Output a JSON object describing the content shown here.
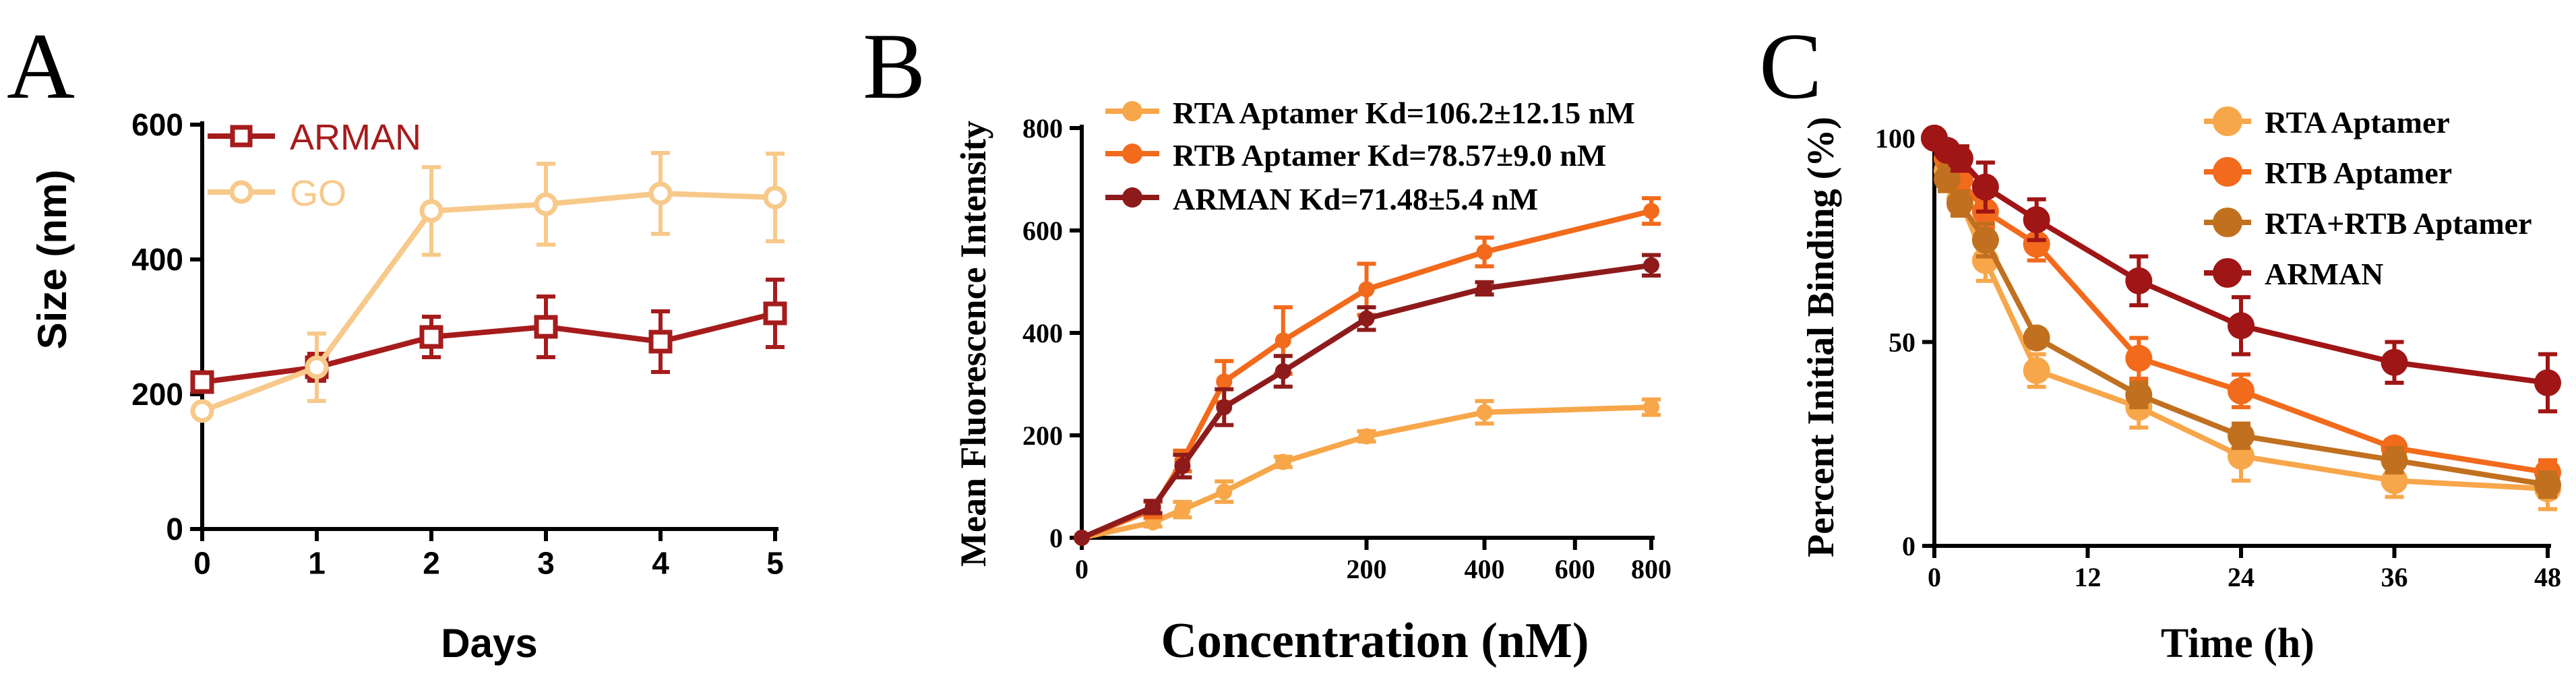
{
  "chart_data": [
    {
      "type": "line",
      "panel": "A",
      "xlabel": "Days",
      "ylabel": "Size (nm)",
      "xlim": [
        0,
        5
      ],
      "ylim": [
        0,
        600
      ],
      "xticks": [
        0,
        1,
        2,
        3,
        4,
        5
      ],
      "yticks": [
        0,
        200,
        400,
        600
      ],
      "x": [
        0,
        1,
        2,
        3,
        4,
        5
      ],
      "legend_position": "top-left",
      "series": [
        {
          "name": "ARMAN",
          "color": "#A61C1C",
          "marker": "square",
          "values": [
            218,
            240,
            285,
            300,
            278,
            320
          ],
          "errors": [
            12,
            20,
            30,
            45,
            45,
            50
          ]
        },
        {
          "name": "GO",
          "color": "#F7C98A",
          "marker": "circle",
          "values": [
            175,
            240,
            472,
            482,
            498,
            492
          ],
          "errors": [
            8,
            50,
            65,
            60,
            60,
            65
          ]
        }
      ]
    },
    {
      "type": "line",
      "panel": "B",
      "xlabel": "Concentration (nM)",
      "ylabel": "Mean Fluorescence Intensity",
      "xlim": [
        0,
        800
      ],
      "ylim": [
        0,
        800
      ],
      "xticks": [
        0,
        200,
        400,
        600,
        800
      ],
      "yticks": [
        0,
        200,
        400,
        600,
        800
      ],
      "x": [
        0,
        12.5,
        25,
        50,
        100,
        200,
        400,
        800
      ],
      "legend_position": "top-left",
      "series": [
        {
          "name": "RTA Aptamer Kd=106.2±12.15 nM",
          "color": "#F7A64A",
          "values": [
            0,
            30,
            55,
            90,
            148,
            198,
            245,
            255
          ],
          "errors": [
            0,
            8,
            15,
            20,
            10,
            10,
            22,
            15
          ]
        },
        {
          "name": "RTB Aptamer Kd=78.57±9.0 nM",
          "color": "#F26A1B",
          "values": [
            0,
            55,
            150,
            305,
            385,
            485,
            558,
            638
          ],
          "errors": [
            0,
            15,
            20,
            40,
            65,
            50,
            28,
            25
          ]
        },
        {
          "name": "ARMAN  Kd=71.48±5.4 nM",
          "color": "#8E1B1B",
          "values": [
            0,
            60,
            140,
            255,
            325,
            428,
            487,
            532
          ],
          "errors": [
            0,
            12,
            22,
            35,
            30,
            22,
            12,
            20
          ]
        }
      ]
    },
    {
      "type": "line",
      "panel": "C",
      "xlabel": "Time (h)",
      "ylabel": "Percent Initial Binding (%)",
      "xlim": [
        0,
        48
      ],
      "ylim": [
        0,
        100
      ],
      "xticks": [
        0,
        12,
        24,
        36,
        48
      ],
      "yticks": [
        0,
        50,
        100
      ],
      "x": [
        0,
        1,
        2,
        4,
        8,
        16,
        24,
        36,
        48
      ],
      "legend_position": "top-right",
      "series": [
        {
          "name": "RTA Aptamer",
          "color": "#F7A64A",
          "values": [
            100,
            92,
            85,
            70,
            43,
            34,
            22,
            16,
            14
          ],
          "errors": [
            0,
            3,
            4,
            5,
            4,
            5,
            6,
            4,
            5
          ]
        },
        {
          "name": "RTB Aptamer",
          "color": "#F26A1B",
          "values": [
            100,
            95,
            90,
            82,
            74,
            46,
            38,
            24,
            18
          ],
          "errors": [
            0,
            3,
            3,
            4,
            4,
            5,
            4,
            2,
            3
          ]
        },
        {
          "name": "RTA+RTB Aptamer",
          "color": "#C0701F",
          "values": [
            100,
            90,
            84,
            75,
            51,
            37,
            27,
            21,
            15
          ],
          "errors": [
            0,
            3,
            3,
            4,
            2,
            3,
            3,
            3,
            3
          ]
        },
        {
          "name": "ARMAN",
          "color": "#A01515",
          "values": [
            100,
            97,
            95,
            88,
            80,
            65,
            54,
            45,
            40
          ],
          "errors": [
            0,
            2,
            3,
            6,
            5,
            6,
            7,
            5,
            7
          ]
        }
      ]
    }
  ]
}
